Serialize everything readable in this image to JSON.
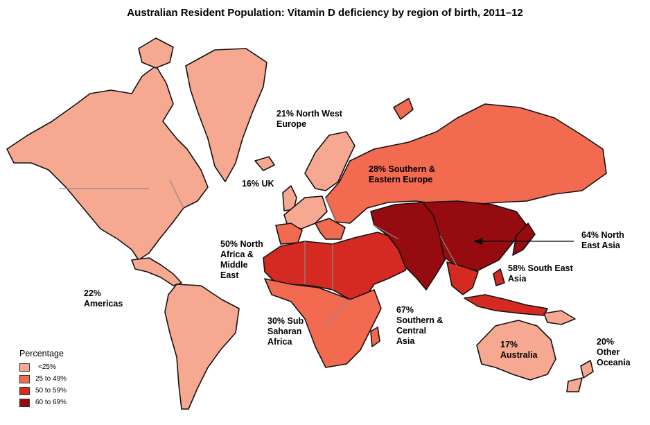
{
  "title": "Australian Resident Population: Vitamin D deficiency by region of birth, 2011–12",
  "colors": {
    "lt25": "#f6a890",
    "25to49": "#f26a4f",
    "50to59": "#d42a22",
    "60to69": "#960b0f"
  },
  "regions": [
    {
      "id": "americas",
      "line1": "22%",
      "line2": "Americas",
      "line3": "",
      "line4": "",
      "category": "lt25"
    },
    {
      "id": "nw-europe",
      "line1": "21% North West",
      "line2": "Europe",
      "line3": "",
      "line4": "",
      "category": "lt25"
    },
    {
      "id": "uk",
      "line1": "16% UK",
      "line2": "",
      "line3": "",
      "line4": "",
      "category": "lt25"
    },
    {
      "id": "se-europe",
      "line1": "28% Southern &",
      "line2": "Eastern Europe",
      "line3": "",
      "line4": "",
      "category": "25to49"
    },
    {
      "id": "na-me",
      "line1": "50% North",
      "line2": "Africa &",
      "line3": "Middle",
      "line4": "East",
      "category": "50to59"
    },
    {
      "id": "ssa",
      "line1": "30% Sub",
      "line2": "Saharan",
      "line3": "Africa",
      "line4": "",
      "category": "25to49"
    },
    {
      "id": "sc-asia",
      "line1": "67%",
      "line2": "Southern &",
      "line3": "Central",
      "line4": "Asia",
      "category": "60to69"
    },
    {
      "id": "se-asia",
      "line1": "58% South East",
      "line2": "Asia",
      "line3": "",
      "line4": "",
      "category": "50to59"
    },
    {
      "id": "ne-asia",
      "line1": "64% North",
      "line2": "East Asia",
      "line3": "",
      "line4": "",
      "category": "60to69"
    },
    {
      "id": "australia",
      "line1": "17%",
      "line2": "Australia",
      "line3": "",
      "line4": "",
      "category": "lt25"
    },
    {
      "id": "oceania",
      "line1": "20%",
      "line2": "Other",
      "line3": "Oceania",
      "line4": "",
      "category": "lt25"
    }
  ],
  "legend": {
    "title": "Percentage",
    "items": [
      {
        "label": "<25%",
        "color": "#f6a890"
      },
      {
        "label": "25 to 49%",
        "color": "#f26a4f"
      },
      {
        "label": "50 to 59%",
        "color": "#d42a22"
      },
      {
        "label": "60 to 69%",
        "color": "#960b0f"
      }
    ]
  }
}
